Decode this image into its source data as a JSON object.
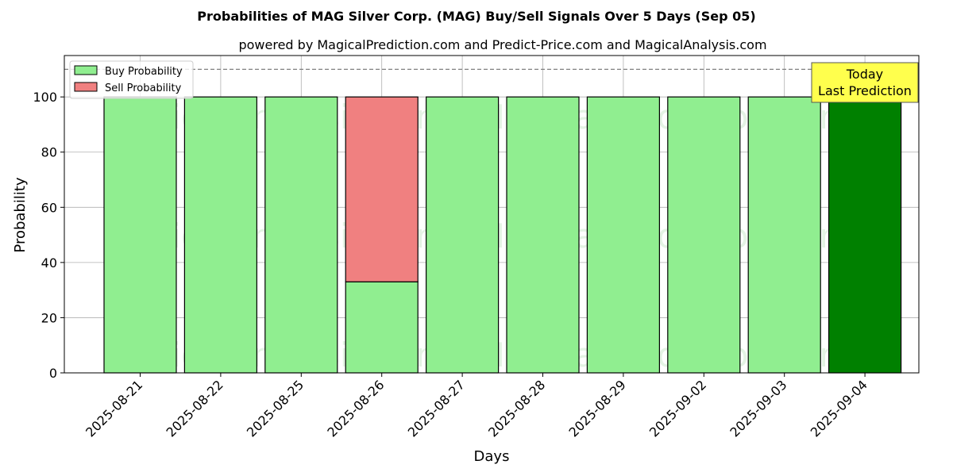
{
  "chart_data": {
    "type": "bar",
    "title": "Probabilities of MAG Silver Corp. (MAG) Buy/Sell Signals Over 5 Days (Sep 05)",
    "subtitle": "powered by MagicalPrediction.com and Predict-Price.com and MagicalAnalysis.com",
    "xlabel": "Days",
    "ylabel": "Probability",
    "ylim": [
      0,
      115
    ],
    "yticks": [
      0,
      20,
      40,
      60,
      80,
      100
    ],
    "reference_line": 110,
    "grid": true,
    "stacked": true,
    "legend_position": "top-left",
    "categories": [
      "2025-08-21",
      "2025-08-22",
      "2025-08-25",
      "2025-08-26",
      "2025-08-27",
      "2025-08-28",
      "2025-08-29",
      "2025-09-02",
      "2025-09-03",
      "2025-09-04"
    ],
    "series": [
      {
        "name": "Buy Probability",
        "color": "#90ee90",
        "values": [
          100,
          100,
          100,
          33,
          100,
          100,
          100,
          100,
          100,
          100
        ]
      },
      {
        "name": "Sell Probability",
        "color": "#f08080",
        "values": [
          0,
          0,
          0,
          67,
          0,
          0,
          0,
          0,
          0,
          0
        ]
      }
    ],
    "highlight": {
      "index": 9,
      "color": "#008000"
    },
    "annotation": {
      "line1": "Today",
      "line2": "Last Prediction",
      "bg": "#ffff4d"
    },
    "watermarks": [
      "MagicalAnalysis.com",
      "MagicalPrediction.com"
    ]
  }
}
